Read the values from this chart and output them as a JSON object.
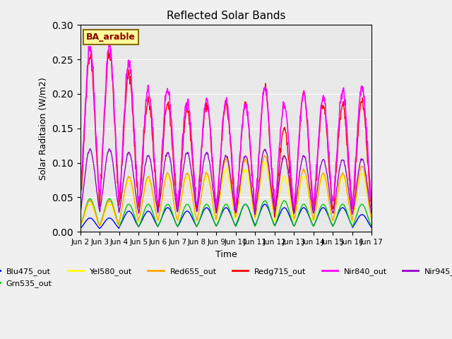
{
  "title": "Reflected Solar Bands",
  "xlabel": "Time",
  "ylabel": "Solar Raditaion (W/m2)",
  "annotation_text": "BA_arable",
  "annotation_color": "#8B0000",
  "annotation_bg": "#FFFF99",
  "annotation_border": "#8B6914",
  "ylim": [
    0,
    0.3
  ],
  "yticks": [
    0.0,
    0.05,
    0.1,
    0.15,
    0.2,
    0.25,
    0.3
  ],
  "plot_bg": "#E8E8E8",
  "fig_bg": "#F0F0F0",
  "series_colors": {
    "Blu475_out": "#0000FF",
    "Grn535_out": "#00CC00",
    "Yel580_out": "#FFFF00",
    "Red655_out": "#FFA500",
    "Redg715_out": "#FF0000",
    "Nir840_out": "#FF00FF",
    "Nir945_out": "#9900CC"
  },
  "xtick_labels": [
    "Jun 2",
    "Jun 3",
    "Jun 4",
    "Jun 5",
    "Jun 6",
    "Jun 7",
    "Jun 8",
    "Jun 9",
    "Jun 10",
    "Jun 11",
    "Jun 12",
    "Jun 13",
    "Jun 14",
    "Jun 15",
    "Jun 16",
    "Jun 17"
  ],
  "num_days": 15,
  "pts_per_day": 48,
  "day_peaks_nir840": [
    0.27,
    0.27,
    0.245,
    0.205,
    0.205,
    0.19,
    0.19,
    0.19,
    0.185,
    0.21,
    0.185,
    0.2,
    0.195,
    0.205,
    0.21
  ],
  "day_peaks_nir945": [
    0.12,
    0.12,
    0.115,
    0.11,
    0.115,
    0.115,
    0.115,
    0.11,
    0.11,
    0.12,
    0.11,
    0.11,
    0.105,
    0.105,
    0.105
  ],
  "day_peaks_redg715": [
    0.255,
    0.26,
    0.23,
    0.19,
    0.185,
    0.175,
    0.185,
    0.185,
    0.185,
    0.21,
    0.15,
    0.2,
    0.185,
    0.185,
    0.19
  ],
  "day_peaks_red655": [
    0.045,
    0.045,
    0.08,
    0.08,
    0.085,
    0.085,
    0.085,
    0.105,
    0.105,
    0.11,
    0.11,
    0.09,
    0.085,
    0.085,
    0.095
  ],
  "day_peaks_yel580": [
    0.04,
    0.04,
    0.075,
    0.075,
    0.08,
    0.08,
    0.08,
    0.09,
    0.09,
    0.1,
    0.08,
    0.08,
    0.08,
    0.08,
    0.085
  ],
  "day_peaks_grn535": [
    0.048,
    0.048,
    0.04,
    0.04,
    0.04,
    0.04,
    0.04,
    0.04,
    0.04,
    0.045,
    0.045,
    0.04,
    0.04,
    0.04,
    0.04
  ],
  "day_peaks_blu475": [
    0.02,
    0.02,
    0.03,
    0.03,
    0.035,
    0.03,
    0.035,
    0.035,
    0.04,
    0.04,
    0.035,
    0.035,
    0.035,
    0.035,
    0.025
  ]
}
